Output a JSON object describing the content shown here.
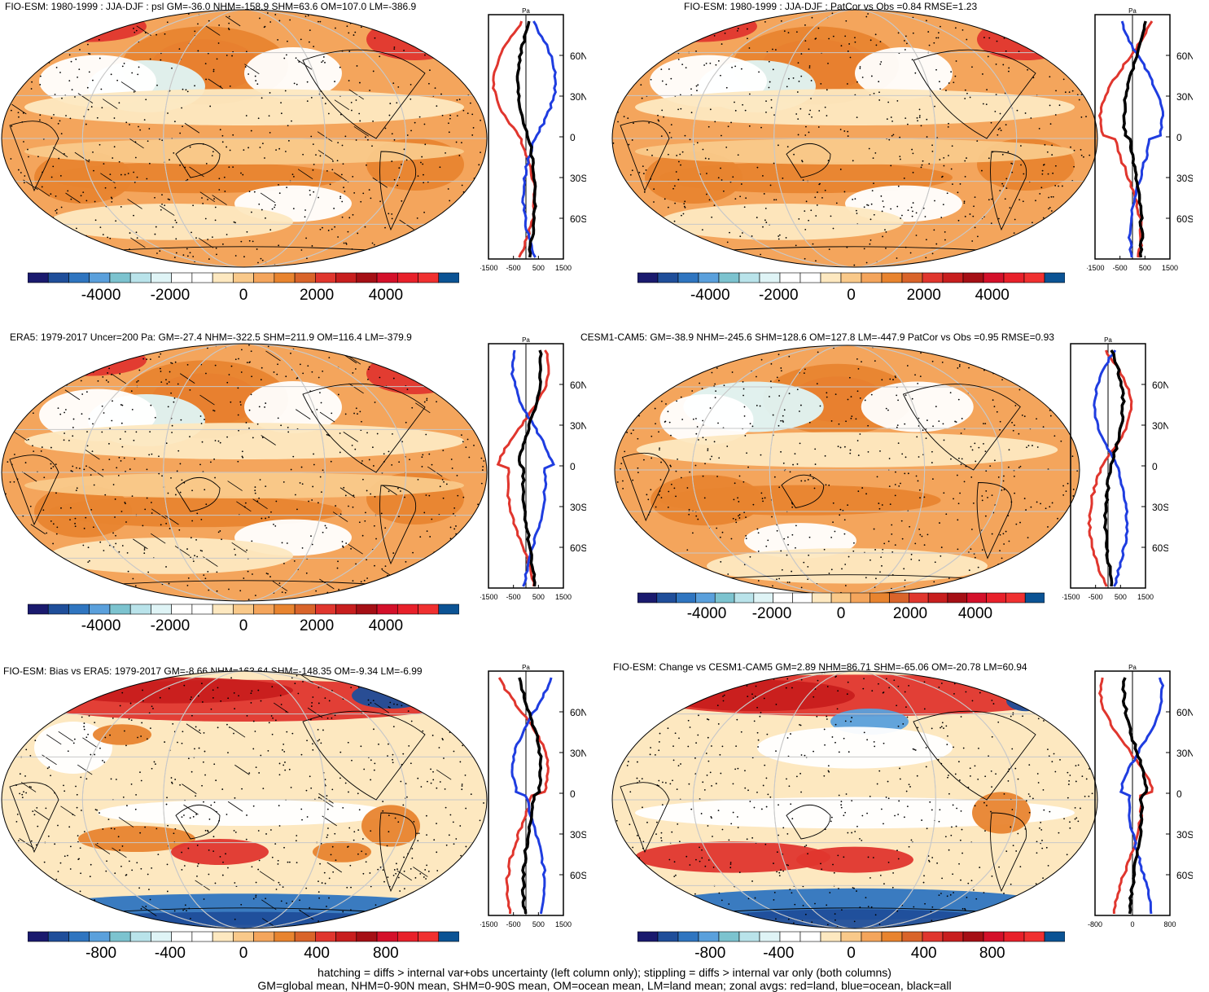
{
  "palette": [
    "#1a1a6e",
    "#1f4e9a",
    "#2f75c0",
    "#5aa0dc",
    "#7cc3cf",
    "#b9e3ea",
    "#dff4f6",
    "#ffffff",
    "#ffffff",
    "#fde8c0",
    "#f9c98a",
    "#f4a55c",
    "#e8842f",
    "#d9642a",
    "#e0362e",
    "#c81e1e",
    "#a50f15",
    "#d4102a",
    "#e8202a",
    "#f03030",
    "#0b5394"
  ],
  "colors": {
    "land": "#e0362e",
    "ocean": "#1f3de0",
    "all": "#000000",
    "grid": "#c8c8c8"
  },
  "zonal_labels": {
    "unit": "Pa",
    "lats": [
      "60N",
      "30N",
      "0",
      "30S",
      "60S"
    ]
  },
  "panels": [
    {
      "id": "p1",
      "title": "FIO-ESM: 1980-1999 : JJA-DJF : psl GM=-36.0 NHM=-158.9 SHM=63.6 OM=107.0 LM=-386.9",
      "cbar_ticks": [
        "-4000",
        "-2000",
        "0",
        "2000",
        "4000"
      ],
      "zonal_ticks": [
        "-1500",
        "-500",
        "500",
        "1500"
      ],
      "scheme": "mean",
      "hatch": true,
      "seed": 3
    },
    {
      "id": "p2",
      "title": "FIO-ESM: 1980-1999 : JJA-DJF : PatCor vs Obs =0.84 RMSE=1.23",
      "cbar_ticks": [
        "-4000",
        "-2000",
        "0",
        "2000",
        "4000"
      ],
      "zonal_ticks": [
        "-1500",
        "-500",
        "500",
        "1500"
      ],
      "scheme": "mean",
      "hatch": false,
      "seed": 5
    },
    {
      "id": "p3",
      "title": "ERA5: 1979-2017 Uncer=200 Pa: GM=-27.4 NHM=-322.5 SHM=211.9 OM=116.4 LM=-379.9",
      "cbar_ticks": [
        "-4000",
        "-2000",
        "0",
        "2000",
        "4000"
      ],
      "zonal_ticks": [
        "-1500",
        "-500",
        "500",
        "1500"
      ],
      "scheme": "mean",
      "hatch": true,
      "seed": 7
    },
    {
      "id": "p4",
      "title": "CESM1-CAM5: GM=-38.9 NHM=-245.6 SHM=128.6 OM=127.8 LM=-447.9 PatCor vs Obs =0.95 RMSE=0.93",
      "cbar_ticks": [
        "-4000",
        "-2000",
        "0",
        "2000",
        "4000"
      ],
      "zonal_ticks": [
        "-1500",
        "-500",
        "500",
        "1500"
      ],
      "scheme": "mean2",
      "hatch": false,
      "seed": 11
    },
    {
      "id": "p5",
      "title": "FIO-ESM: Bias vs ERA5: 1979-2017 GM=-8.66 NHM=163.64 SHM=-148.35 OM=-9.34 LM=-6.99",
      "cbar_ticks": [
        "-800",
        "-400",
        "0",
        "400",
        "800"
      ],
      "zonal_ticks": [
        "-1500",
        "-500",
        "500",
        "1500"
      ],
      "scheme": "bias",
      "hatch": true,
      "seed": 13
    },
    {
      "id": "p6",
      "title": "FIO-ESM: Change vs CESM1-CAM5 GM=2.89 NHM=86.71 SHM=-65.06 OM=-20.78 LM=60.94",
      "cbar_ticks": [
        "-800",
        "-400",
        "0",
        "400",
        "800"
      ],
      "zonal_ticks": [
        "-800",
        "0",
        "800"
      ],
      "scheme": "change",
      "hatch": false,
      "seed": 17
    }
  ],
  "footer": {
    "line1": "hatching = diffs > internal var+obs uncertainty (left column only); stippling = diffs > internal var only (both columns)",
    "line2": "GM=global mean, NHM=0-90N mean, SHM=0-90S mean, OM=ocean mean, LM=land mean; zonal avgs: red=land, blue=ocean, black=all"
  }
}
